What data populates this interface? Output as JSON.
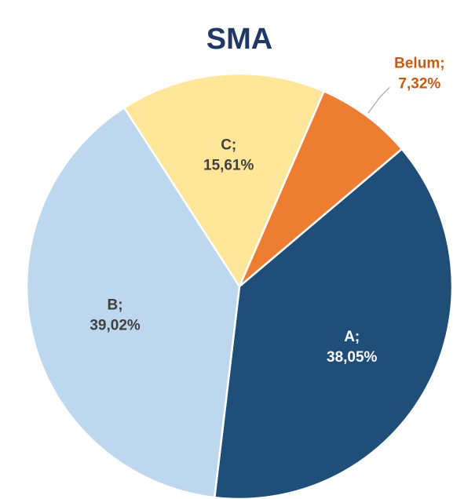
{
  "chart_data": {
    "type": "pie",
    "title": "SMA",
    "categories": [
      "A;",
      "B;",
      "C;",
      "Belum;"
    ],
    "values": [
      38.05,
      39.02,
      15.61,
      7.32
    ],
    "value_labels": [
      "38,05%",
      "39,02%",
      "15,61%",
      "7,32%"
    ],
    "colors": [
      "#1f4e79",
      "#bdd7ee",
      "#ffe699",
      "#ed7d31"
    ],
    "label_colors": [
      "#ffffff",
      "#404040",
      "#404040",
      "#c55a11"
    ]
  }
}
